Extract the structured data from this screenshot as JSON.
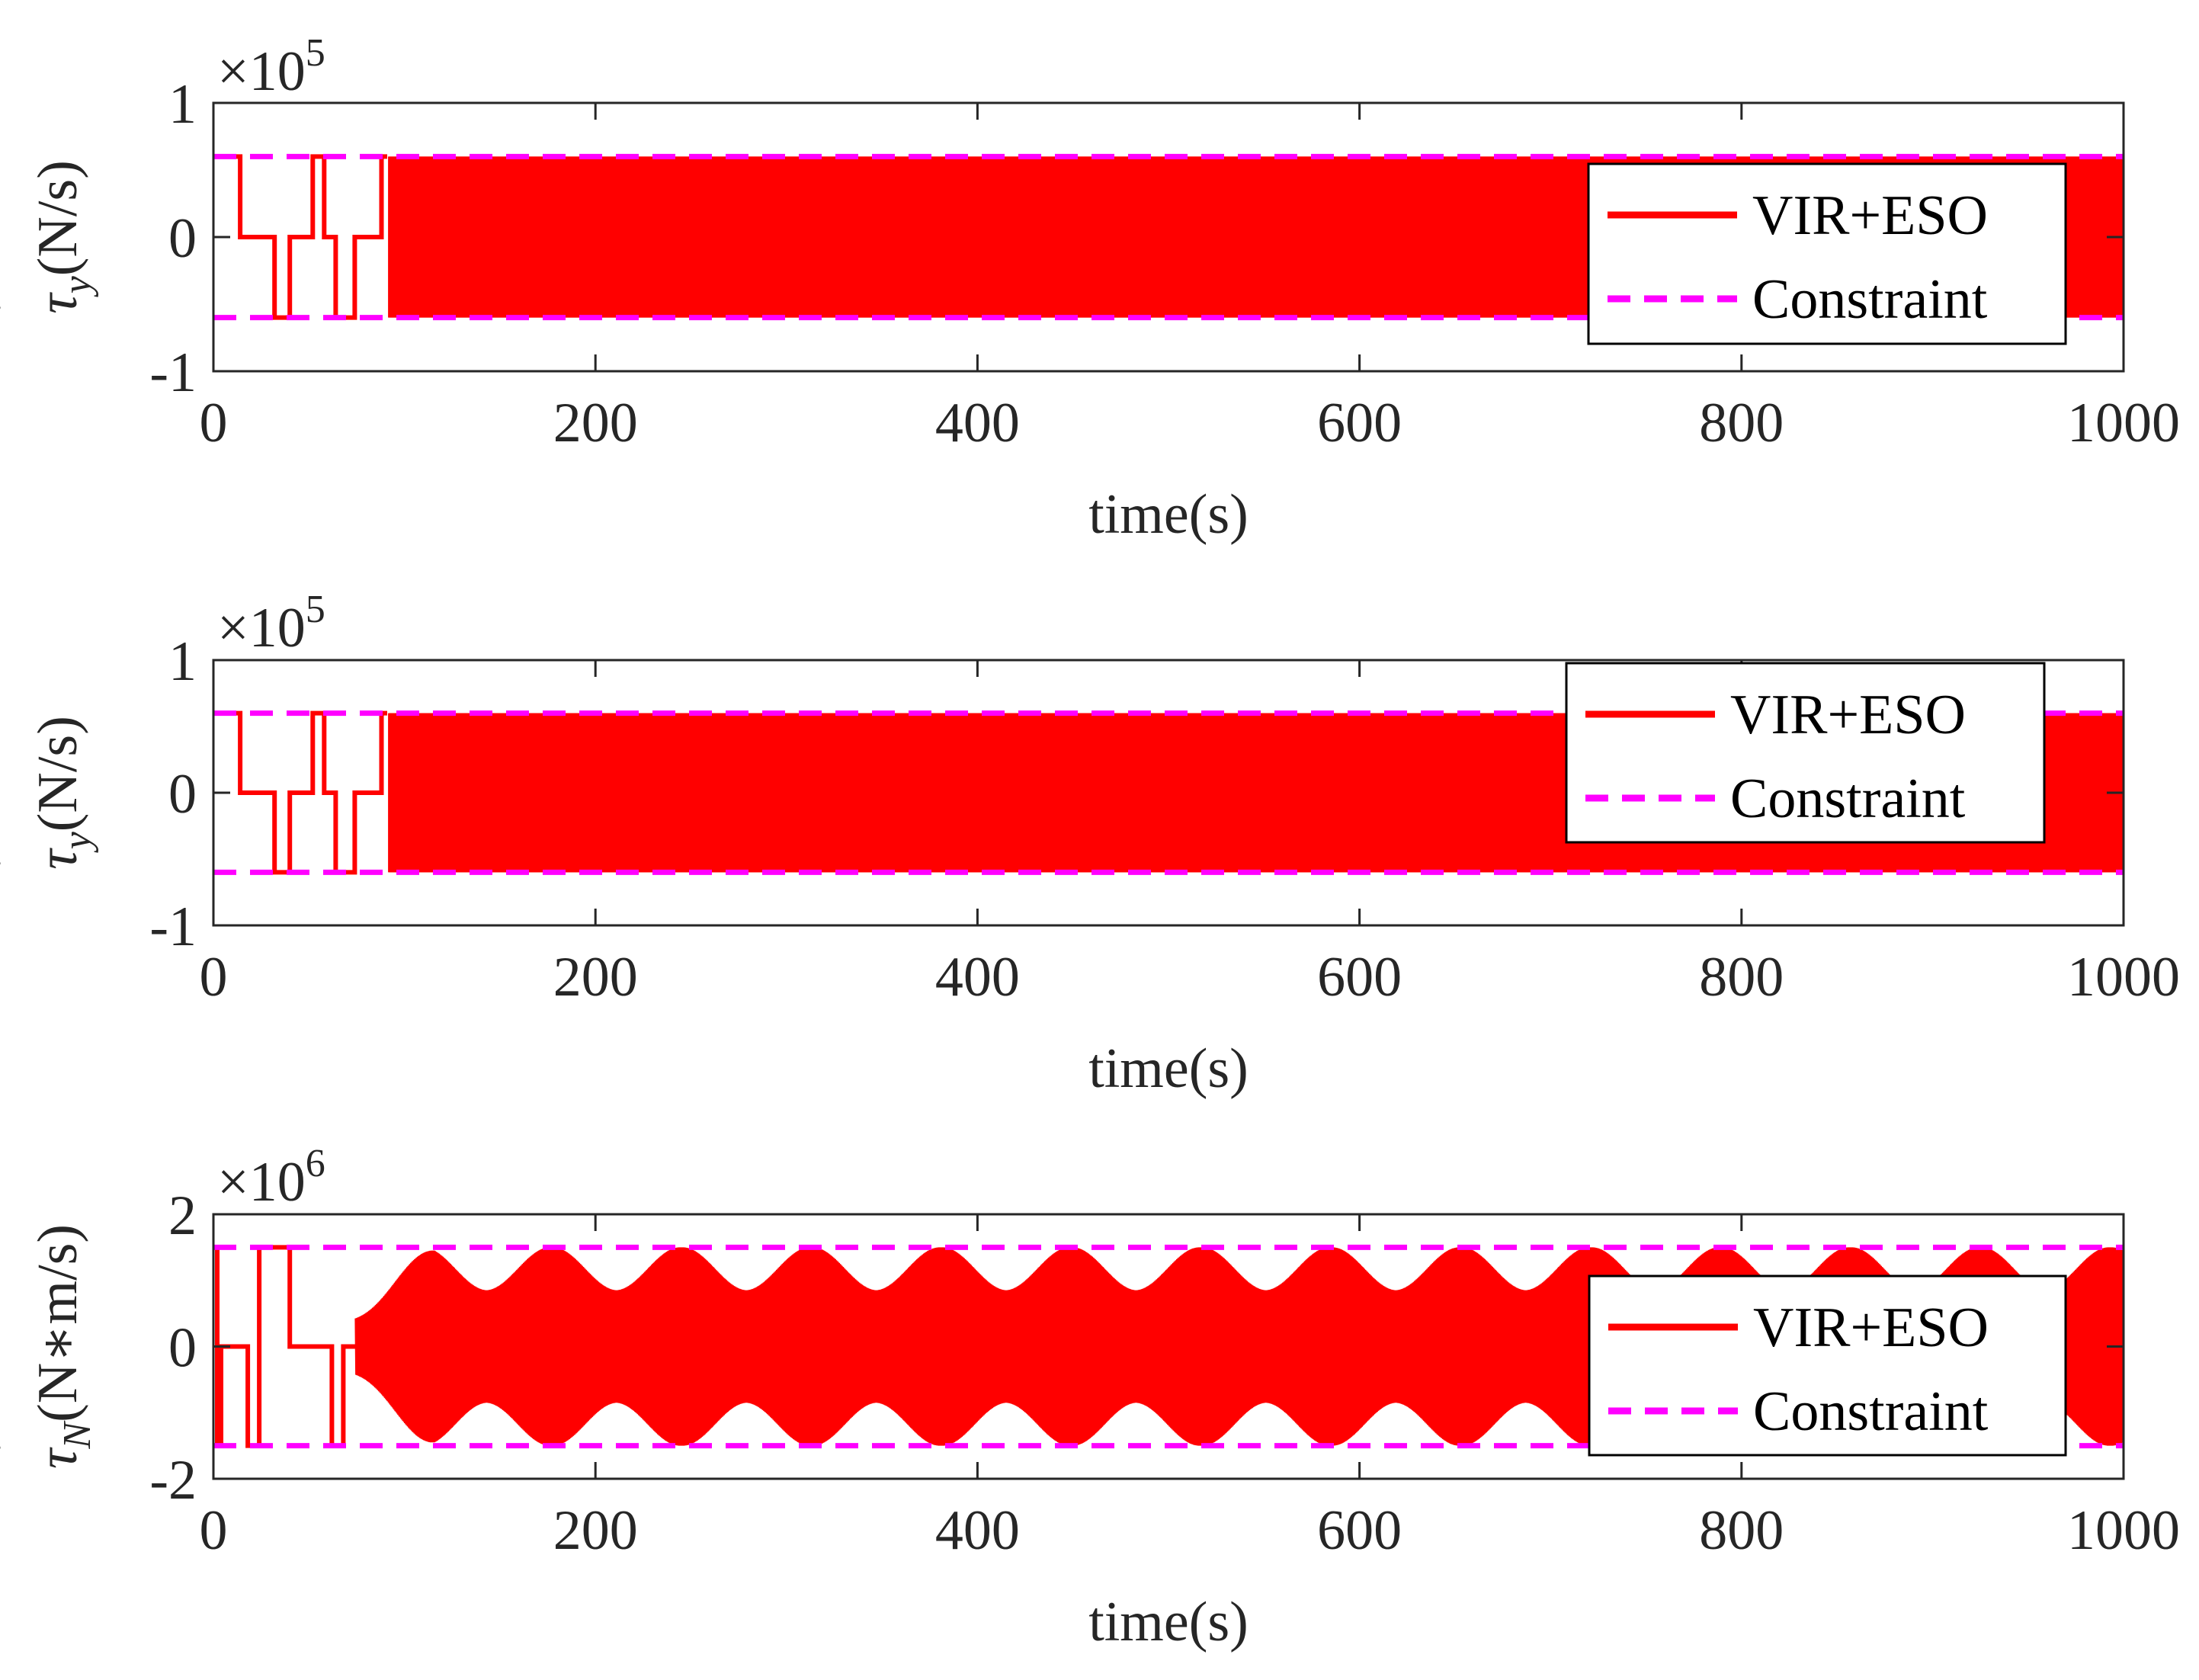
{
  "chart_data": [
    {
      "type": "line",
      "xlabel": "time(s)",
      "ylabel": "τ̇y(N/s)",
      "ylabel_parts": {
        "symbol": "τ",
        "dot": "˙",
        "sub": "y",
        "unit": "(N/s)"
      },
      "exponent": {
        "base": "×10",
        "power": "5"
      },
      "xlim": [
        0,
        1000
      ],
      "ylim": [
        -1,
        1
      ],
      "xticks": [
        "0",
        "200",
        "400",
        "600",
        "800",
        "1000"
      ],
      "yticks": [
        "1",
        "0",
        "-1"
      ],
      "legend_position": "right",
      "series": [
        {
          "name": "VIR+ESO",
          "style": "solid",
          "color": "#ff0000",
          "description": "switching signal saturating at the constraint bounds",
          "startup_steps": [
            [
              0,
              0.6
            ],
            [
              5,
              0.6
            ],
            [
              5,
              0.6
            ],
            [
              14,
              0.6
            ],
            [
              14,
              0
            ],
            [
              32,
              0
            ],
            [
              32,
              -0.6
            ],
            [
              40,
              -0.6
            ],
            [
              40,
              0
            ],
            [
              52,
              0
            ],
            [
              52,
              0.6
            ],
            [
              58,
              0.6
            ],
            [
              58,
              0
            ],
            [
              64,
              0
            ],
            [
              64,
              -0.6
            ],
            [
              74,
              -0.6
            ],
            [
              74,
              0
            ],
            [
              88,
              0
            ],
            [
              88,
              0.6
            ],
            [
              91,
              0.6
            ]
          ],
          "dense_band": {
            "x_start": 92,
            "x_end": 1000,
            "upper": 0.6,
            "lower": -0.6
          }
        },
        {
          "name": "Constraint",
          "style": "dashed",
          "color": "#ff00ff",
          "levels": [
            0.6,
            -0.6
          ]
        }
      ]
    },
    {
      "type": "line",
      "xlabel": "time(s)",
      "ylabel": "τ̇y(N/s)",
      "ylabel_parts": {
        "symbol": "τ",
        "dot": "˙",
        "sub": "y",
        "unit": "(N/s)"
      },
      "exponent": {
        "base": "×10",
        "power": "5"
      },
      "xlim": [
        0,
        1000
      ],
      "ylim": [
        -1,
        1
      ],
      "xticks": [
        "0",
        "200",
        "400",
        "600",
        "800",
        "1000"
      ],
      "yticks": [
        "1",
        "0",
        "-1"
      ],
      "legend_position": "top-right",
      "series": [
        {
          "name": "VIR+ESO",
          "style": "solid",
          "color": "#ff0000",
          "description": "switching signal saturating at the constraint bounds",
          "startup_steps": [
            [
              0,
              0.6
            ],
            [
              5,
              0.6
            ],
            [
              5,
              0.6
            ],
            [
              14,
              0.6
            ],
            [
              14,
              0
            ],
            [
              32,
              0
            ],
            [
              32,
              -0.6
            ],
            [
              40,
              -0.6
            ],
            [
              40,
              0
            ],
            [
              52,
              0
            ],
            [
              52,
              0.6
            ],
            [
              58,
              0.6
            ],
            [
              58,
              0
            ],
            [
              64,
              0
            ],
            [
              64,
              -0.6
            ],
            [
              74,
              -0.6
            ],
            [
              74,
              0
            ],
            [
              88,
              0
            ],
            [
              88,
              0.6
            ],
            [
              91,
              0.6
            ]
          ],
          "dense_band": {
            "x_start": 92,
            "x_end": 1000,
            "upper": 0.6,
            "lower": -0.6
          }
        },
        {
          "name": "Constraint",
          "style": "dashed",
          "color": "#ff00ff",
          "levels": [
            0.6,
            -0.6
          ]
        }
      ]
    },
    {
      "type": "line",
      "xlabel": "time(s)",
      "ylabel": "τ̇N(N∗m/s)",
      "ylabel_parts": {
        "symbol": "τ",
        "dot": "˙",
        "sub": "N",
        "unit": "(N∗m/s)"
      },
      "exponent": {
        "base": "×10",
        "power": "6"
      },
      "xlim": [
        0,
        1000
      ],
      "ylim": [
        -2,
        2
      ],
      "xticks": [
        "0",
        "200",
        "400",
        "600",
        "800",
        "1000"
      ],
      "yticks": [
        "2",
        "0",
        "-2"
      ],
      "legend_position": "right",
      "series": [
        {
          "name": "VIR+ESO",
          "style": "solid",
          "color": "#ff0000",
          "description": "oscillating signal with periodic amplitude envelope bounded by the constraint",
          "startup_steps": [
            [
              0,
              1.5
            ],
            [
              2,
              1.5
            ],
            [
              2,
              -1.5
            ],
            [
              4,
              -1.5
            ],
            [
              4,
              0
            ],
            [
              18,
              0
            ],
            [
              18,
              -1.5
            ],
            [
              24,
              -1.5
            ],
            [
              24,
              1.5
            ],
            [
              40,
              1.5
            ],
            [
              40,
              0
            ],
            [
              62,
              0
            ],
            [
              62,
              -1.5
            ],
            [
              68,
              -1.5
            ],
            [
              68,
              0
            ],
            [
              75,
              0
            ]
          ],
          "envelope": {
            "x_start": 75,
            "x_end": 1000,
            "period": 68,
            "max": 1.5,
            "min_amplitude": 0.85,
            "upper": 1.5,
            "lower": -1.5
          }
        },
        {
          "name": "Constraint",
          "style": "dashed",
          "color": "#ff00ff",
          "levels": [
            1.5,
            -1.5
          ]
        }
      ]
    }
  ]
}
